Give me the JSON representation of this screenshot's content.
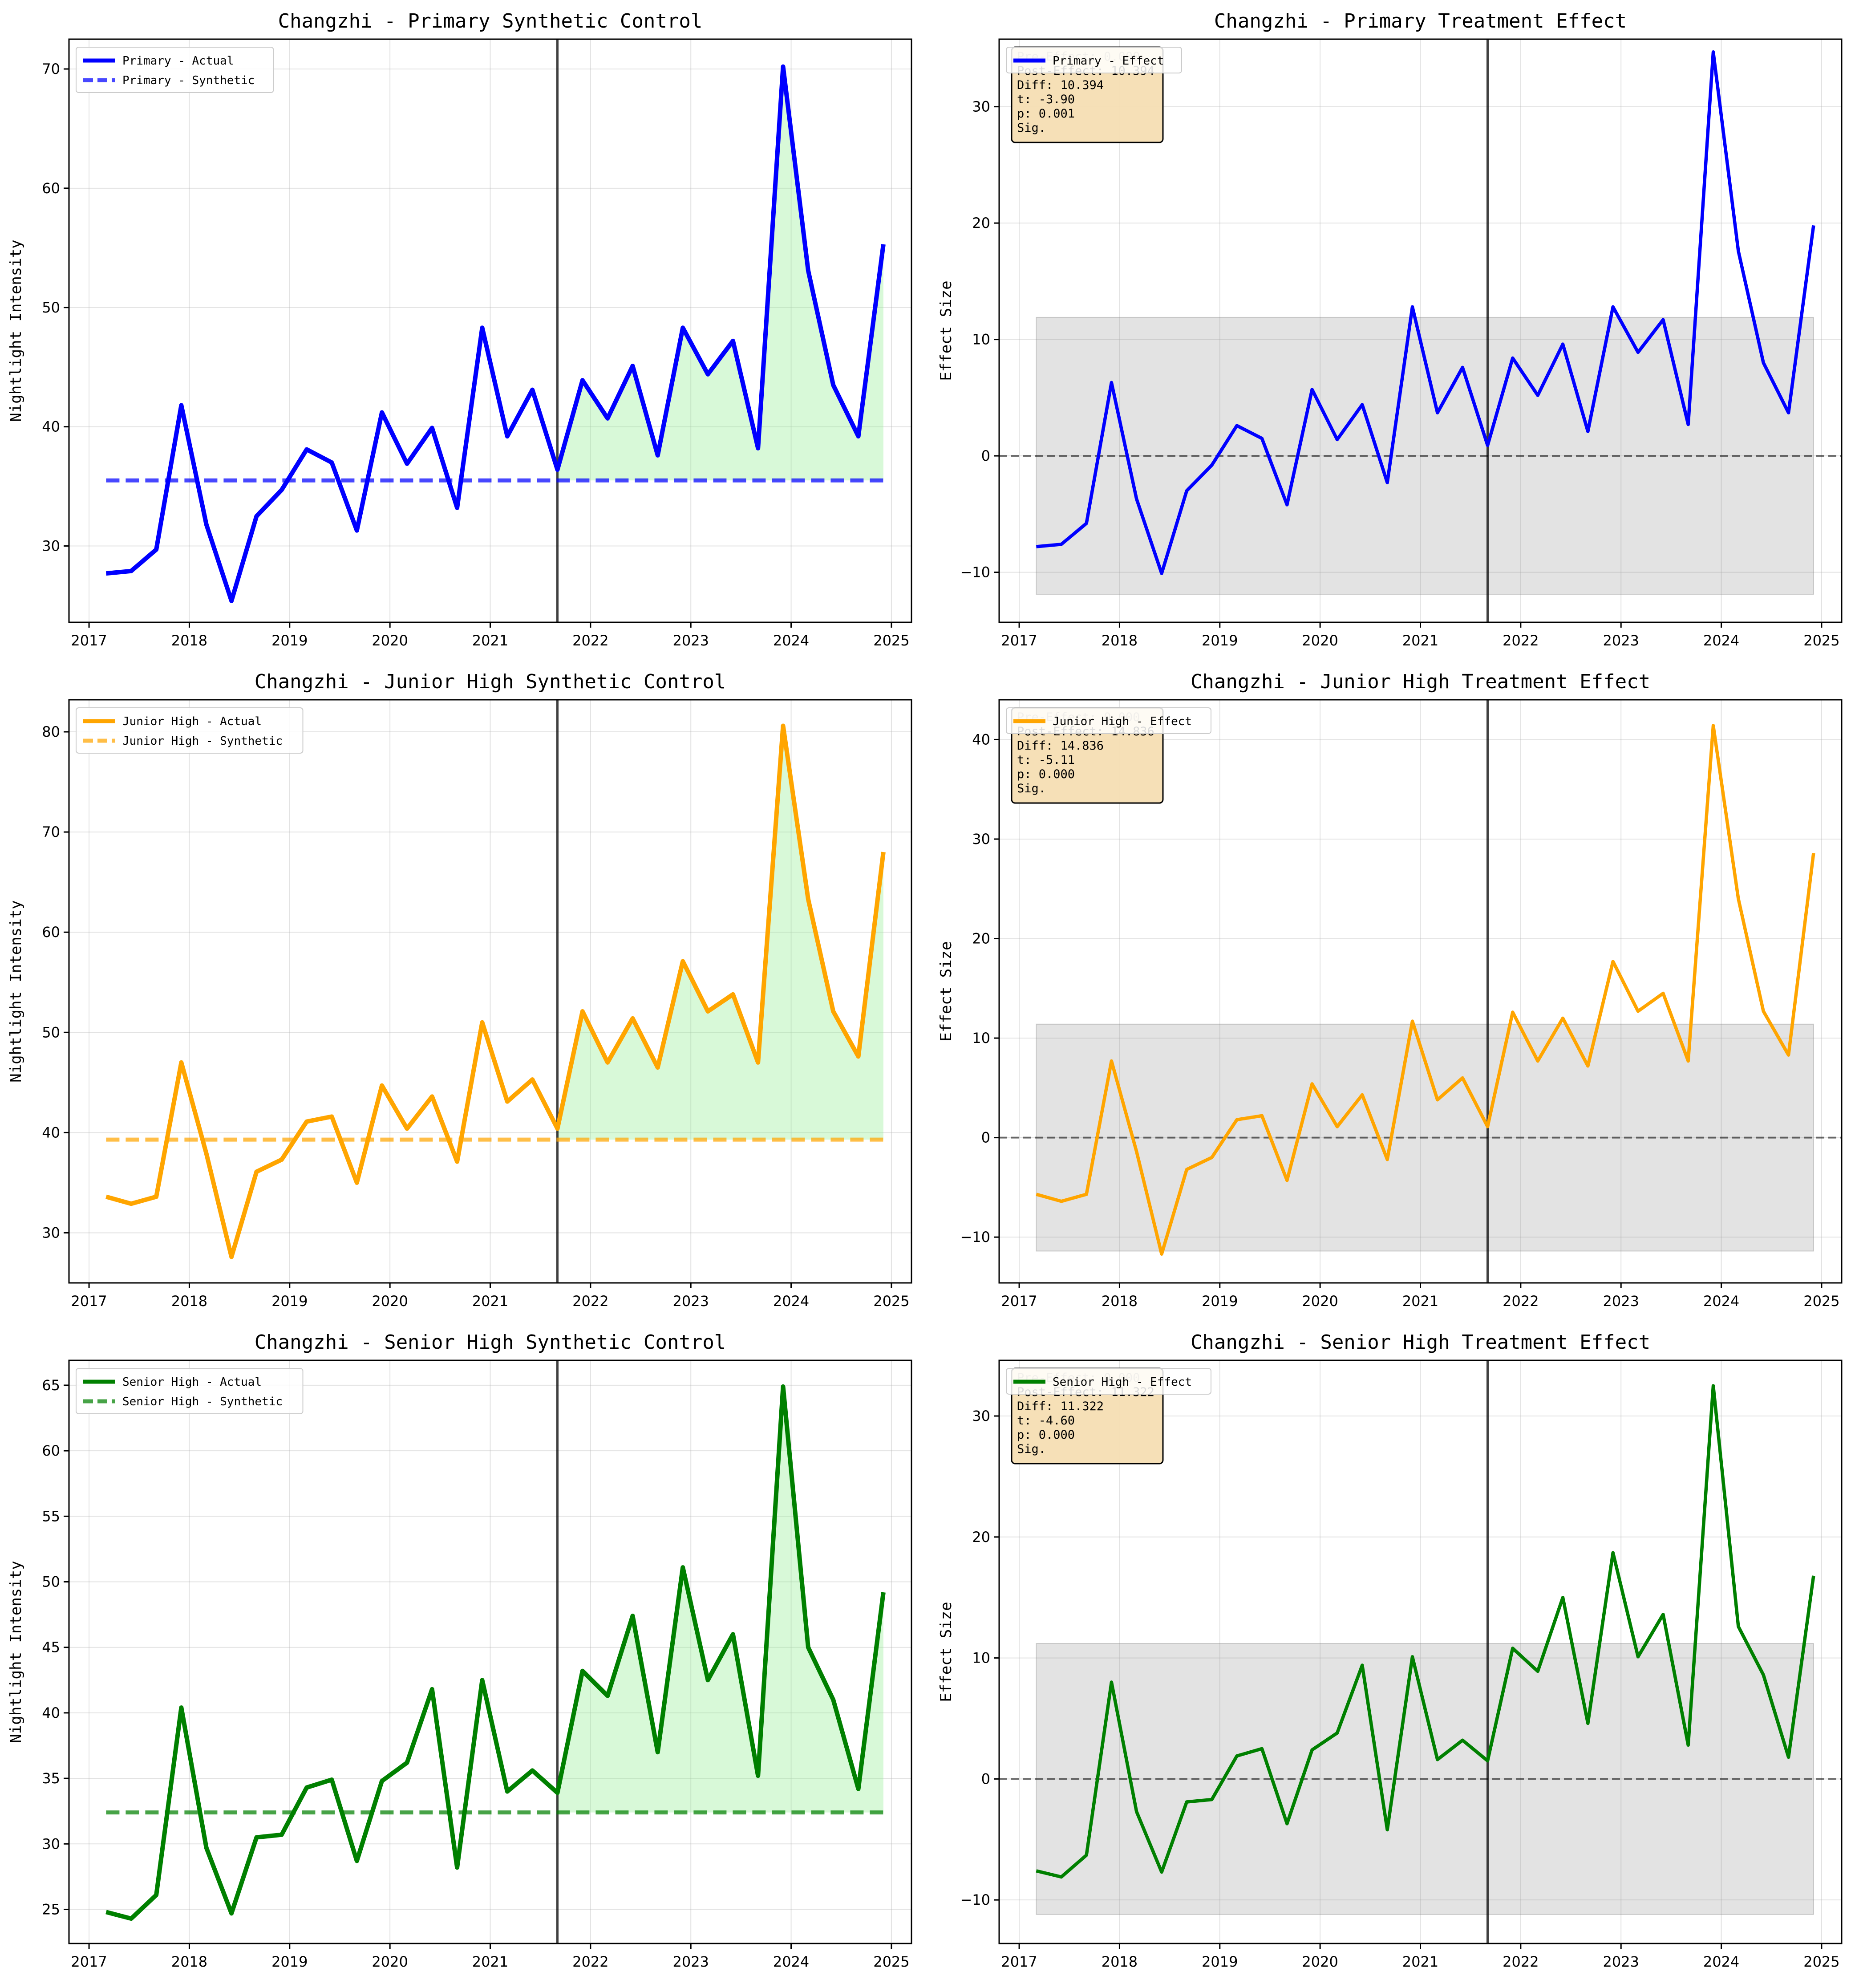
{
  "chart_data": [
    {
      "id": "primary-sc",
      "type": "line",
      "title": "Changzhi - Primary Synthetic Control",
      "xlabel": "",
      "ylabel": "Nightlight Intensity",
      "x_ticks": [
        "2017",
        "2018",
        "2019",
        "2020",
        "2021",
        "2022",
        "2023",
        "2024",
        "2025"
      ],
      "y_ticks": [
        "30",
        "40",
        "50",
        "60",
        "70"
      ],
      "xlim": [
        2016.8,
        2025.2
      ],
      "ylim": [
        23.6,
        72.5
      ],
      "treatment_x": 2021.67,
      "grid": true,
      "legend_position": "top-left",
      "x": [
        2017.17,
        2017.42,
        2017.67,
        2017.92,
        2018.17,
        2018.42,
        2018.67,
        2018.92,
        2019.17,
        2019.42,
        2019.67,
        2019.92,
        2020.17,
        2020.42,
        2020.67,
        2020.92,
        2021.17,
        2021.42,
        2021.67,
        2021.92,
        2022.17,
        2022.42,
        2022.67,
        2022.92,
        2023.17,
        2023.42,
        2023.67,
        2023.92,
        2024.17,
        2024.42,
        2024.67,
        2024.92
      ],
      "series": [
        {
          "name": "Primary - Actual",
          "color": "#0000ff",
          "style": "solid",
          "values": [
            27.7,
            27.9,
            29.7,
            41.8,
            31.8,
            25.4,
            32.5,
            34.7,
            38.1,
            37.0,
            31.3,
            41.2,
            36.9,
            39.9,
            33.2,
            48.3,
            39.2,
            43.1,
            36.4,
            43.9,
            40.7,
            45.1,
            37.6,
            48.3,
            44.4,
            47.2,
            38.2,
            70.2,
            53.1,
            43.5,
            39.2,
            55.3
          ]
        },
        {
          "name": "Primary - Synthetic",
          "color": "#0000ff",
          "style": "dashed",
          "values": [
            35.5,
            35.5,
            35.5,
            35.5,
            35.5,
            35.5,
            35.5,
            35.5,
            35.5,
            35.5,
            35.5,
            35.5,
            35.5,
            35.5,
            35.5,
            35.5,
            35.5,
            35.5,
            35.5,
            35.5,
            35.5,
            35.5,
            35.5,
            35.5,
            35.5,
            35.5,
            35.5,
            35.5,
            35.5,
            35.5,
            35.5,
            35.5
          ]
        }
      ],
      "post_fill_color": "#90ee90"
    },
    {
      "id": "primary-te",
      "type": "line",
      "title": "Changzhi - Primary Treatment Effect",
      "xlabel": "",
      "ylabel": "Effect Size",
      "x_ticks": [
        "2017",
        "2018",
        "2019",
        "2020",
        "2021",
        "2022",
        "2023",
        "2024",
        "2025"
      ],
      "y_ticks": [
        "−10",
        "0",
        "10",
        "20",
        "30"
      ],
      "y_tick_values": [
        -10,
        0,
        10,
        20,
        30
      ],
      "xlim": [
        2016.8,
        2025.2
      ],
      "ylim": [
        -14.3,
        35.8
      ],
      "treatment_x": 2021.67,
      "zero_line": true,
      "band": [
        -11.9,
        11.9
      ],
      "grid": true,
      "legend_position": "top-left",
      "x": [
        2017.17,
        2017.42,
        2017.67,
        2017.92,
        2018.17,
        2018.42,
        2018.67,
        2018.92,
        2019.17,
        2019.42,
        2019.67,
        2019.92,
        2020.17,
        2020.42,
        2020.67,
        2020.92,
        2021.17,
        2021.42,
        2021.67,
        2021.92,
        2022.17,
        2022.42,
        2022.67,
        2022.92,
        2023.17,
        2023.42,
        2023.67,
        2023.92,
        2024.17,
        2024.42,
        2024.67,
        2024.92
      ],
      "series": [
        {
          "name": "Primary - Effect",
          "color": "#0000ff",
          "style": "solid",
          "values": [
            -7.8,
            -7.6,
            -5.8,
            6.3,
            -3.7,
            -10.1,
            -3.0,
            -0.8,
            2.6,
            1.5,
            -4.2,
            5.7,
            1.4,
            4.4,
            -2.3,
            12.8,
            3.7,
            7.6,
            0.9,
            8.4,
            5.2,
            9.6,
            2.1,
            12.8,
            8.9,
            11.7,
            2.7,
            34.7,
            17.6,
            8.0,
            3.7,
            19.8
          ]
        }
      ],
      "stats": {
        "header": "Pre-Effect: 0.000",
        "lines": [
          "Pre-Effect: 0.000",
          "Post-Effect: 10.394",
          "Diff: 10.394",
          "t: -3.90",
          "p: 0.001",
          "Sig."
        ]
      }
    },
    {
      "id": "junior-sc",
      "type": "line",
      "title": "Changzhi - Junior High Synthetic Control",
      "xlabel": "",
      "ylabel": "Nightlight Intensity",
      "x_ticks": [
        "2017",
        "2018",
        "2019",
        "2020",
        "2021",
        "2022",
        "2023",
        "2024",
        "2025"
      ],
      "y_ticks": [
        "30",
        "40",
        "50",
        "60",
        "70",
        "80"
      ],
      "xlim": [
        2016.8,
        2025.2
      ],
      "ylim": [
        25.0,
        83.2
      ],
      "treatment_x": 2021.67,
      "grid": true,
      "legend_position": "top-left",
      "x": [
        2017.17,
        2017.42,
        2017.67,
        2017.92,
        2018.17,
        2018.42,
        2018.67,
        2018.92,
        2019.17,
        2019.42,
        2019.67,
        2019.92,
        2020.17,
        2020.42,
        2020.67,
        2020.92,
        2021.17,
        2021.42,
        2021.67,
        2021.92,
        2022.17,
        2022.42,
        2022.67,
        2022.92,
        2023.17,
        2023.42,
        2023.67,
        2023.92,
        2024.17,
        2024.42,
        2024.67,
        2024.92
      ],
      "series": [
        {
          "name": "Junior High - Actual",
          "color": "#ffa500",
          "style": "solid",
          "values": [
            33.6,
            32.9,
            33.6,
            47.0,
            37.9,
            27.6,
            36.1,
            37.3,
            41.1,
            41.6,
            35.0,
            44.7,
            40.4,
            43.6,
            37.1,
            51.0,
            43.1,
            45.3,
            40.4,
            52.1,
            47.0,
            51.4,
            46.5,
            57.1,
            52.1,
            53.8,
            47.0,
            80.6,
            63.3,
            52.1,
            47.6,
            68.0
          ]
        },
        {
          "name": "Junior High - Synthetic",
          "color": "#ffa500",
          "style": "dashed",
          "values": [
            39.3,
            39.3,
            39.3,
            39.3,
            39.3,
            39.3,
            39.3,
            39.3,
            39.3,
            39.3,
            39.3,
            39.3,
            39.3,
            39.3,
            39.3,
            39.3,
            39.3,
            39.3,
            39.3,
            39.3,
            39.3,
            39.3,
            39.3,
            39.3,
            39.3,
            39.3,
            39.3,
            39.3,
            39.3,
            39.3,
            39.3,
            39.3
          ]
        }
      ],
      "post_fill_color": "#90ee90"
    },
    {
      "id": "junior-te",
      "type": "line",
      "title": "Changzhi - Junior High Treatment Effect",
      "xlabel": "",
      "ylabel": "Effect Size",
      "x_ticks": [
        "2017",
        "2018",
        "2019",
        "2020",
        "2021",
        "2022",
        "2023",
        "2024",
        "2025"
      ],
      "y_ticks": [
        "−10",
        "0",
        "10",
        "20",
        "30",
        "40"
      ],
      "y_tick_values": [
        -10,
        0,
        10,
        20,
        30,
        40
      ],
      "xlim": [
        2016.8,
        2025.2
      ],
      "ylim": [
        -14.6,
        44.0
      ],
      "treatment_x": 2021.67,
      "zero_line": true,
      "band": [
        -11.4,
        11.4
      ],
      "grid": true,
      "legend_position": "top-left",
      "x": [
        2017.17,
        2017.42,
        2017.67,
        2017.92,
        2018.17,
        2018.42,
        2018.67,
        2018.92,
        2019.17,
        2019.42,
        2019.67,
        2019.92,
        2020.17,
        2020.42,
        2020.67,
        2020.92,
        2021.17,
        2021.42,
        2021.67,
        2021.92,
        2022.17,
        2022.42,
        2022.67,
        2022.92,
        2023.17,
        2023.42,
        2023.67,
        2023.92,
        2024.17,
        2024.42,
        2024.67,
        2024.92
      ],
      "series": [
        {
          "name": "Junior High - Effect",
          "color": "#ffa500",
          "style": "solid",
          "values": [
            -5.7,
            -6.4,
            -5.7,
            7.7,
            -1.4,
            -11.7,
            -3.2,
            -2.0,
            1.8,
            2.2,
            -4.3,
            5.4,
            1.1,
            4.3,
            -2.2,
            11.7,
            3.8,
            6.0,
            1.1,
            12.6,
            7.7,
            12.0,
            7.2,
            17.7,
            12.7,
            14.5,
            7.7,
            41.4,
            24.0,
            12.7,
            8.3,
            28.6
          ]
        }
      ],
      "stats": {
        "header": "Pre-Effect: 0.000",
        "lines": [
          "Pre-Effect: 0.000",
          "Post-Effect: 14.836",
          "Diff: 14.836",
          "t: -5.11",
          "p: 0.000",
          "Sig."
        ]
      }
    },
    {
      "id": "senior-sc",
      "type": "line",
      "title": "Changzhi - Senior High Synthetic Control",
      "xlabel": "",
      "ylabel": "Nightlight Intensity",
      "x_ticks": [
        "2017",
        "2018",
        "2019",
        "2020",
        "2021",
        "2022",
        "2023",
        "2024",
        "2025"
      ],
      "y_ticks": [
        "25",
        "30",
        "35",
        "40",
        "45",
        "50",
        "55",
        "60",
        "65"
      ],
      "xlim": [
        2016.8,
        2025.2
      ],
      "ylim": [
        22.4,
        66.9
      ],
      "treatment_x": 2021.67,
      "grid": true,
      "legend_position": "top-left",
      "x": [
        2017.17,
        2017.42,
        2017.67,
        2017.92,
        2018.17,
        2018.42,
        2018.67,
        2018.92,
        2019.17,
        2019.42,
        2019.67,
        2019.92,
        2020.17,
        2020.42,
        2020.67,
        2020.92,
        2021.17,
        2021.42,
        2021.67,
        2021.92,
        2022.17,
        2022.42,
        2022.67,
        2022.92,
        2023.17,
        2023.42,
        2023.67,
        2023.92,
        2024.17,
        2024.42,
        2024.67,
        2024.92
      ],
      "series": [
        {
          "name": "Senior High - Actual",
          "color": "#008000",
          "style": "solid",
          "values": [
            24.8,
            24.3,
            26.1,
            40.4,
            29.7,
            24.7,
            30.5,
            30.7,
            34.3,
            34.9,
            28.7,
            34.8,
            36.2,
            41.8,
            28.2,
            42.5,
            34.0,
            35.6,
            33.9,
            43.2,
            41.3,
            47.4,
            37.0,
            51.1,
            42.5,
            46.0,
            35.2,
            64.9,
            45.0,
            41.0,
            34.2,
            49.2
          ]
        },
        {
          "name": "Senior High - Synthetic",
          "color": "#008000",
          "style": "dashed",
          "values": [
            32.4,
            32.4,
            32.4,
            32.4,
            32.4,
            32.4,
            32.4,
            32.4,
            32.4,
            32.4,
            32.4,
            32.4,
            32.4,
            32.4,
            32.4,
            32.4,
            32.4,
            32.4,
            32.4,
            32.4,
            32.4,
            32.4,
            32.4,
            32.4,
            32.4,
            32.4,
            32.4,
            32.4,
            32.4,
            32.4,
            32.4,
            32.4
          ]
        }
      ],
      "post_fill_color": "#90ee90"
    },
    {
      "id": "senior-te",
      "type": "line",
      "title": "Changzhi - Senior High Treatment Effect",
      "xlabel": "",
      "ylabel": "Effect Size",
      "x_ticks": [
        "2017",
        "2018",
        "2019",
        "2020",
        "2021",
        "2022",
        "2023",
        "2024",
        "2025"
      ],
      "y_ticks": [
        "−10",
        "0",
        "10",
        "20",
        "30"
      ],
      "y_tick_values": [
        -10,
        0,
        10,
        20,
        30
      ],
      "xlim": [
        2016.8,
        2025.2
      ],
      "ylim": [
        -13.6,
        34.6
      ],
      "treatment_x": 2021.67,
      "zero_line": true,
      "band": [
        -11.2,
        11.2
      ],
      "grid": true,
      "legend_position": "top-left",
      "x": [
        2017.17,
        2017.42,
        2017.67,
        2017.92,
        2018.17,
        2018.42,
        2018.67,
        2018.92,
        2019.17,
        2019.42,
        2019.67,
        2019.92,
        2020.17,
        2020.42,
        2020.67,
        2020.92,
        2021.17,
        2021.42,
        2021.67,
        2021.92,
        2022.17,
        2022.42,
        2022.67,
        2022.92,
        2023.17,
        2023.42,
        2023.67,
        2023.92,
        2024.17,
        2024.42,
        2024.67,
        2024.92
      ],
      "series": [
        {
          "name": "Senior High - Effect",
          "color": "#008000",
          "style": "solid",
          "values": [
            -7.6,
            -8.1,
            -6.3,
            8.0,
            -2.7,
            -7.7,
            -1.9,
            -1.7,
            1.9,
            2.5,
            -3.7,
            2.4,
            3.8,
            9.4,
            -4.2,
            10.1,
            1.6,
            3.2,
            1.5,
            10.8,
            8.9,
            15.0,
            4.6,
            18.7,
            10.1,
            13.6,
            2.8,
            32.5,
            12.6,
            8.6,
            1.8,
            16.8
          ]
        }
      ],
      "stats": {
        "header": "Pre-Effect: 0.000",
        "lines": [
          "Pre-Effect: 0.000",
          "Post-Effect: 11.322",
          "Diff: 11.322",
          "t: -4.60",
          "p: 0.000",
          "Sig."
        ]
      }
    }
  ]
}
